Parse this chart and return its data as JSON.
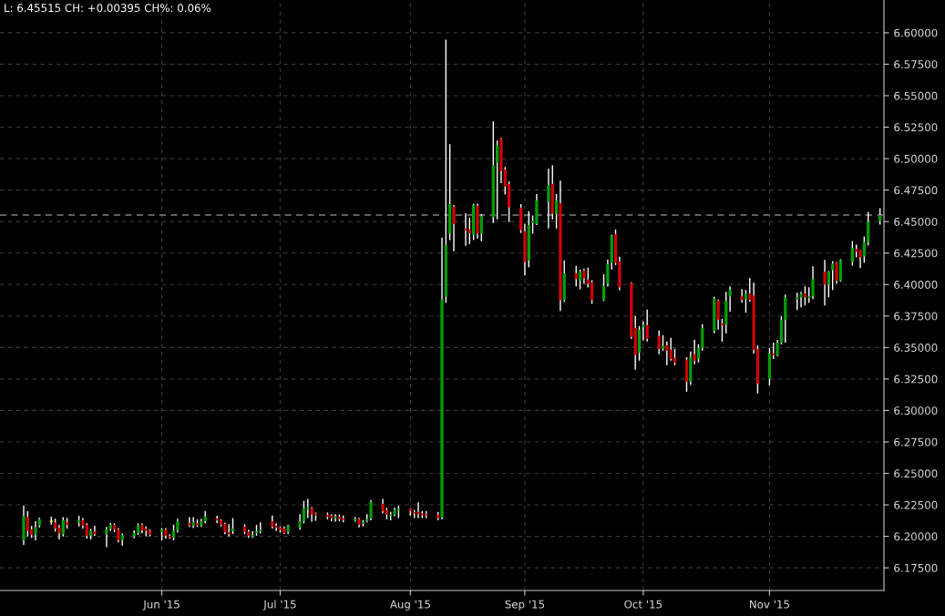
{
  "chart_data": {
    "type": "candlestick",
    "annotations": [
      "L: 6.45515 CH: +0.00395 CH%: 0.06%"
    ],
    "x": [
      "2015-04-27",
      "2015-04-28",
      "2015-04-29",
      "2015-04-30",
      "2015-05-01",
      "2015-05-04",
      "2015-05-05",
      "2015-05-06",
      "2015-05-07",
      "2015-05-08",
      "2015-05-11",
      "2015-05-12",
      "2015-05-13",
      "2015-05-14",
      "2015-05-15",
      "2015-05-18",
      "2015-05-19",
      "2015-05-20",
      "2015-05-21",
      "2015-05-22",
      "2015-05-25",
      "2015-05-26",
      "2015-05-27",
      "2015-05-28",
      "2015-05-29",
      "2015-06-01",
      "2015-06-02",
      "2015-06-03",
      "2015-06-04",
      "2015-06-05",
      "2015-06-08",
      "2015-06-09",
      "2015-06-10",
      "2015-06-11",
      "2015-06-12",
      "2015-06-15",
      "2015-06-16",
      "2015-06-17",
      "2015-06-18",
      "2015-06-19",
      "2015-06-22",
      "2015-06-23",
      "2015-06-24",
      "2015-06-25",
      "2015-06-26",
      "2015-06-29",
      "2015-06-30",
      "2015-07-01",
      "2015-07-02",
      "2015-07-03",
      "2015-07-06",
      "2015-07-07",
      "2015-07-08",
      "2015-07-09",
      "2015-07-10",
      "2015-07-13",
      "2015-07-14",
      "2015-07-15",
      "2015-07-16",
      "2015-07-17",
      "2015-07-20",
      "2015-07-21",
      "2015-07-22",
      "2015-07-23",
      "2015-07-24",
      "2015-07-27",
      "2015-07-28",
      "2015-07-29",
      "2015-07-30",
      "2015-07-31",
      "2015-08-03",
      "2015-08-04",
      "2015-08-05",
      "2015-08-06",
      "2015-08-07",
      "2015-08-10",
      "2015-08-11",
      "2015-08-12",
      "2015-08-13",
      "2015-08-14",
      "2015-08-17",
      "2015-08-18",
      "2015-08-19",
      "2015-08-20",
      "2015-08-21",
      "2015-08-24",
      "2015-08-25",
      "2015-08-26",
      "2015-08-27",
      "2015-08-28",
      "2015-08-31",
      "2015-09-01",
      "2015-09-02",
      "2015-09-03",
      "2015-09-04",
      "2015-09-07",
      "2015-09-08",
      "2015-09-09",
      "2015-09-10",
      "2015-09-11",
      "2015-09-14",
      "2015-09-15",
      "2015-09-16",
      "2015-09-17",
      "2015-09-18",
      "2015-09-21",
      "2015-09-22",
      "2015-09-23",
      "2015-09-24",
      "2015-09-25",
      "2015-09-28",
      "2015-09-29",
      "2015-09-30",
      "2015-10-01",
      "2015-10-02",
      "2015-10-05",
      "2015-10-06",
      "2015-10-07",
      "2015-10-08",
      "2015-10-09",
      "2015-10-12",
      "2015-10-13",
      "2015-10-14",
      "2015-10-15",
      "2015-10-16",
      "2015-10-19",
      "2015-10-20",
      "2015-10-21",
      "2015-10-22",
      "2015-10-23",
      "2015-10-26",
      "2015-10-27",
      "2015-10-28",
      "2015-10-29",
      "2015-10-30",
      "2015-11-02",
      "2015-11-03",
      "2015-11-04",
      "2015-11-05",
      "2015-11-06",
      "2015-11-09",
      "2015-11-10",
      "2015-11-11",
      "2015-11-12",
      "2015-11-13",
      "2015-11-16",
      "2015-11-17",
      "2015-11-18",
      "2015-11-19",
      "2015-11-20",
      "2015-11-23",
      "2015-11-24",
      "2015-11-25",
      "2015-11-26",
      "2015-11-27",
      "2015-11-30"
    ],
    "ohlc": [
      [
        6.1968,
        6.2245,
        6.1931,
        6.2164
      ],
      [
        6.2157,
        6.2201,
        6.2,
        6.2042
      ],
      [
        6.2054,
        6.2083,
        6.1988,
        6.2012
      ],
      [
        6.2012,
        6.212,
        6.1968,
        6.2074
      ],
      [
        6.2086,
        6.2147,
        6.2071,
        6.2135
      ],
      [
        6.2126,
        6.2157,
        6.2093,
        6.2114
      ],
      [
        6.211,
        6.214,
        6.2037,
        6.2061
      ],
      [
        6.2069,
        6.2091,
        6.1976,
        6.2025
      ],
      [
        6.2017,
        6.2152,
        6.1998,
        6.2128
      ],
      [
        6.2113,
        6.2147,
        6.2061,
        6.2091
      ],
      [
        6.2108,
        6.2164,
        6.2078,
        6.2128
      ],
      [
        6.2128,
        6.2147,
        6.2061,
        6.2086
      ],
      [
        6.2091,
        6.2103,
        6.198,
        6.2005
      ],
      [
        6.2005,
        6.2059,
        6.1976,
        6.2044
      ],
      [
        6.2039,
        6.2083,
        6.2005,
        6.2017
      ],
      [
        6.2017,
        6.2074,
        6.1914,
        6.2054
      ],
      [
        6.2061,
        6.2108,
        6.2042,
        6.2091
      ],
      [
        6.2091,
        6.2103,
        6.2034,
        6.2054
      ],
      [
        6.2054,
        6.2066,
        6.1951,
        6.1968
      ],
      [
        6.1968,
        6.2022,
        6.1927,
        6.201
      ],
      [
        6.2,
        6.2047,
        6.1985,
        6.2025
      ],
      [
        6.2025,
        6.2103,
        6.2012,
        6.2091
      ],
      [
        6.2091,
        6.2103,
        6.2025,
        6.2049
      ],
      [
        6.2061,
        6.2078,
        6.2,
        6.2044
      ],
      [
        6.2044,
        6.2054,
        6.2,
        6.2012
      ],
      [
        6.2034,
        6.2066,
        6.1968,
        6.2054
      ],
      [
        6.2054,
        6.2066,
        6.198,
        6.2005
      ],
      [
        6.2003,
        6.2017,
        6.198,
        6.199
      ],
      [
        6.199,
        6.2093,
        6.1968,
        6.2047
      ],
      [
        6.2047,
        6.214,
        6.2029,
        6.212
      ],
      [
        6.2105,
        6.2152,
        6.2074,
        6.2086
      ],
      [
        6.2086,
        6.2152,
        6.2066,
        6.2113
      ],
      [
        6.2105,
        6.2135,
        6.2074,
        6.2086
      ],
      [
        6.2086,
        6.214,
        6.2074,
        6.2118
      ],
      [
        6.212,
        6.2201,
        6.2103,
        6.2157
      ],
      [
        6.2142,
        6.2164,
        6.2103,
        6.2128
      ],
      [
        6.2128,
        6.2135,
        6.2078,
        6.2091
      ],
      [
        6.2098,
        6.211,
        6.2017,
        6.2034
      ],
      [
        6.2032,
        6.2096,
        6.1998,
        6.2018
      ],
      [
        6.2042,
        6.2145,
        6.2018,
        6.2062
      ],
      [
        6.2076,
        6.2096,
        6.2018,
        6.2037
      ],
      [
        6.2037,
        6.2054,
        6.1988,
        6.2005
      ],
      [
        6.1998,
        6.2042,
        6.1988,
        6.201
      ],
      [
        6.2027,
        6.2091,
        6.2005,
        6.2039
      ],
      [
        6.2039,
        6.2111,
        6.2025,
        6.2054
      ],
      [
        6.212,
        6.2165,
        6.2062,
        6.2076
      ],
      [
        6.2084,
        6.2103,
        6.2042,
        6.2069
      ],
      [
        6.2069,
        6.2079,
        6.203,
        6.2052
      ],
      [
        6.2064,
        6.2079,
        6.2018,
        6.2027
      ],
      [
        6.2035,
        6.2091,
        6.2018,
        6.2081
      ],
      [
        6.2071,
        6.2177,
        6.2054,
        6.212
      ],
      [
        6.212,
        6.2282,
        6.2103,
        6.2223
      ],
      [
        6.2218,
        6.2297,
        6.2145,
        6.2231
      ],
      [
        6.2223,
        6.2233,
        6.2116,
        6.2174
      ],
      [
        6.2182,
        6.2189,
        6.2123,
        6.2167
      ],
      [
        6.2172,
        6.2189,
        6.2135,
        6.2155
      ],
      [
        6.2165,
        6.2177,
        6.212,
        6.2145
      ],
      [
        6.2145,
        6.2177,
        6.2116,
        6.2157
      ],
      [
        6.2157,
        6.2172,
        6.212,
        6.2138
      ],
      [
        6.2142,
        6.2165,
        6.2111,
        6.213
      ],
      [
        6.2125,
        6.2152,
        6.2116,
        6.2138
      ],
      [
        6.2138,
        6.2147,
        6.2071,
        6.2093
      ],
      [
        6.2101,
        6.2128,
        6.2079,
        6.2113
      ],
      [
        6.2123,
        6.2177,
        6.2111,
        6.2138
      ],
      [
        6.2142,
        6.2287,
        6.2128,
        6.2275
      ],
      [
        6.2258,
        6.2297,
        6.2184,
        6.2201
      ],
      [
        6.2209,
        6.2226,
        6.2135,
        6.2172
      ],
      [
        6.216,
        6.2194,
        6.2128,
        6.2172
      ],
      [
        6.2172,
        6.2226,
        6.216,
        6.2209
      ],
      [
        6.2206,
        6.2243,
        6.2145,
        6.2218
      ],
      [
        6.2218,
        6.2221,
        6.2165,
        6.2201
      ],
      [
        6.2194,
        6.2209,
        6.2145,
        6.2182
      ],
      [
        6.2194,
        6.227,
        6.2145,
        6.2179
      ],
      [
        6.2182,
        6.2201,
        6.2145,
        6.2167
      ],
      [
        6.2179,
        6.2201,
        6.2145,
        6.2167
      ],
      [
        6.2172,
        6.2194,
        6.2128,
        6.2145
      ],
      [
        6.215,
        6.4372,
        6.2135,
        6.3882
      ],
      [
        6.3904,
        6.5945,
        6.3856,
        6.4315
      ],
      [
        6.4404,
        6.5115,
        6.4353,
        6.4639
      ],
      [
        6.4618,
        6.4632,
        6.4264,
        6.4481
      ],
      [
        6.4445,
        6.4567,
        6.4307,
        6.443
      ],
      [
        6.4437,
        6.4531,
        6.4322,
        6.4409
      ],
      [
        6.4394,
        6.4642,
        6.4353,
        6.4632
      ],
      [
        6.4625,
        6.4642,
        6.4365,
        6.4404
      ],
      [
        6.4404,
        6.456,
        6.4344,
        6.4546
      ],
      [
        6.4534,
        6.5296,
        6.4488,
        6.4949
      ],
      [
        6.4966,
        6.5144,
        6.4517,
        6.5108
      ],
      [
        6.5159,
        6.5166,
        6.4805,
        6.4901
      ],
      [
        6.4913,
        6.4933,
        6.4714,
        6.4779
      ],
      [
        6.4798,
        6.482,
        6.4497,
        6.4613
      ],
      [
        6.4611,
        6.4639,
        6.4409,
        6.4433
      ],
      [
        6.4423,
        6.4481,
        6.4072,
        6.418
      ],
      [
        6.4192,
        6.4582,
        6.4137,
        6.4473
      ],
      [
        6.449,
        6.4548,
        6.4404,
        6.4505
      ],
      [
        6.4481,
        6.4719,
        6.4473,
        6.4668
      ],
      [
        6.4661,
        6.4921,
        6.4445,
        6.4791
      ],
      [
        6.4798,
        6.4949,
        6.4517,
        6.4562
      ],
      [
        6.4562,
        6.4719,
        6.4445,
        6.4668
      ],
      [
        6.4647,
        6.4825,
        6.379,
        6.3877
      ],
      [
        6.3875,
        6.4192,
        6.386,
        6.4089
      ],
      [
        6.409,
        6.4149,
        6.3985,
        6.4043
      ],
      [
        6.4028,
        6.4119,
        6.3962,
        6.4105
      ],
      [
        6.4112,
        6.4127,
        6.4006,
        6.4049
      ],
      [
        6.404,
        6.4134,
        6.3977,
        6.4006
      ],
      [
        6.4018,
        6.4035,
        6.3847,
        6.3876
      ],
      [
        6.3876,
        6.4083,
        6.3868,
        6.3989
      ],
      [
        6.4006,
        6.4199,
        6.3984,
        6.4163
      ],
      [
        6.4172,
        6.4394,
        6.4119,
        6.4387
      ],
      [
        6.4402,
        6.4438,
        6.4155,
        6.4172
      ],
      [
        6.4184,
        6.4221,
        6.3955,
        6.3977
      ],
      [
        6.4011,
        6.4018,
        6.3568,
        6.3584
      ],
      [
        6.3656,
        6.375,
        6.3323,
        6.3439
      ],
      [
        6.346,
        6.367,
        6.3395,
        6.3641
      ],
      [
        6.3663,
        6.3707,
        6.3555,
        6.3678
      ],
      [
        6.3678,
        6.3801,
        6.3547,
        6.3569
      ],
      [
        6.3591,
        6.3634,
        6.3446,
        6.3489
      ],
      [
        6.3489,
        6.3598,
        6.3475,
        6.3518
      ],
      [
        6.3518,
        6.3547,
        6.3359,
        6.3475
      ],
      [
        6.3482,
        6.3576,
        6.3395,
        6.341
      ],
      [
        6.3417,
        6.3489,
        6.3359,
        6.3381
      ],
      [
        6.3403,
        6.3424,
        6.3149,
        6.3229
      ],
      [
        6.3229,
        6.3468,
        6.3202,
        6.3424
      ],
      [
        6.3446,
        6.3562,
        6.3366,
        6.3395
      ],
      [
        6.341,
        6.3526,
        6.3381,
        6.3497
      ],
      [
        6.3497,
        6.3685,
        6.3475,
        6.3656
      ],
      [
        6.3634,
        6.3902,
        6.3612,
        6.3888
      ],
      [
        6.3873,
        6.388,
        6.3641,
        6.3721
      ],
      [
        6.369,
        6.3728,
        6.3546,
        6.3678
      ],
      [
        6.3683,
        6.3942,
        6.3611,
        6.387
      ],
      [
        6.3906,
        6.3986,
        6.3784,
        6.3957
      ],
      [
        6.3906,
        6.3964,
        6.3856,
        6.3877
      ],
      [
        6.3885,
        6.3957,
        6.3776,
        6.3928
      ],
      [
        6.3928,
        6.405,
        6.3863,
        6.3877
      ],
      [
        6.3913,
        6.4014,
        6.3452,
        6.3481
      ],
      [
        6.3488,
        6.3517,
        6.3135,
        6.3214
      ],
      [
        6.325,
        6.3495,
        6.3199,
        6.3452
      ],
      [
        6.3454,
        6.3538,
        6.3409,
        6.344
      ],
      [
        6.3437,
        6.356,
        6.343,
        6.3538
      ],
      [
        6.3538,
        6.3748,
        6.3524,
        6.3719
      ],
      [
        6.3719,
        6.3921,
        6.3538,
        6.3899
      ],
      [
        6.3885,
        6.3935,
        6.3798,
        6.3899
      ],
      [
        6.3899,
        6.3942,
        6.382,
        6.3928
      ],
      [
        6.3928,
        6.3986,
        6.3834,
        6.3899
      ],
      [
        6.3892,
        6.3978,
        6.3856,
        6.3906
      ],
      [
        6.3906,
        6.4144,
        6.3885,
        6.4043
      ],
      [
        6.4101,
        6.4195,
        6.3834,
        6.4
      ],
      [
        6.4,
        6.4108,
        6.3899,
        6.4101
      ],
      [
        6.4115,
        6.4187,
        6.3957,
        6.4166
      ],
      [
        6.4173,
        6.418,
        6.4007,
        6.4029
      ],
      [
        6.4029,
        6.4202,
        6.4022,
        6.4195
      ],
      [
        6.418,
        6.4346,
        6.4151,
        6.4288
      ],
      [
        6.4281,
        6.4317,
        6.4216,
        6.426
      ],
      [
        6.4274,
        6.4274,
        6.413,
        6.4216
      ],
      [
        6.4224,
        6.4382,
        6.4173,
        6.4339
      ],
      [
        6.4339,
        6.4577,
        6.431,
        6.4498
      ],
      [
        6.4505,
        6.4606,
        6.4476,
        6.4552
      ]
    ],
    "colors": [
      "#00a000",
      "#d40000",
      "#d40000",
      "#00a000",
      "#00a000",
      "#ffff00",
      "#d40000",
      "#d40000",
      "#00a000",
      "#d40000",
      "#00a000",
      "#d40000",
      "#d40000",
      "#00a000",
      "#d40000",
      "#00a000",
      "#00a000",
      "#d40000",
      "#d40000",
      "#00a000",
      "#00a000",
      "#00a000",
      "#d40000",
      "#d40000",
      "#d40000",
      "#00a000",
      "#d40000",
      "#d40000",
      "#00a000",
      "#00a000",
      "#d40000",
      "#00a000",
      "#d40000",
      "#00a000",
      "#00a000",
      "#d40000",
      "#d40000",
      "#d40000",
      "#d40000",
      "#00a000",
      "#d40000",
      "#d40000",
      "#00a000",
      "#00a000",
      "#00a000",
      "#d40000",
      "#d40000",
      "#d40000",
      "#d40000",
      "#00a000",
      "#00a000",
      "#00a000",
      "#00a000",
      "#d40000",
      "#d40000",
      "#d40000",
      "#d40000",
      "#00a000",
      "#d40000",
      "#d40000",
      "#00a000",
      "#d40000",
      "#00a000",
      "#00a000",
      "#00a000",
      "#d40000",
      "#d40000",
      "#00a000",
      "#00a000",
      "#00a000",
      "#d40000",
      "#d40000",
      "#d40000",
      "#d40000",
      "#d40000",
      "#d40000",
      "#00a000",
      "#00a000",
      "#00a000",
      "#d40000",
      "#d40000",
      "#d40000",
      "#00a000",
      "#d40000",
      "#00a000",
      "#00a000",
      "#00a000",
      "#d40000",
      "#d40000",
      "#d40000",
      "#d40000",
      "#d40000",
      "#00a000",
      "#00a000",
      "#00a000",
      "#00a000",
      "#d40000",
      "#00a000",
      "#d40000",
      "#00a000",
      "#d40000",
      "#00a000",
      "#d40000",
      "#d40000",
      "#d40000",
      "#00a000",
      "#00a000",
      "#00a000",
      "#d40000",
      "#d40000",
      "#d40000",
      "#d40000",
      "#00a000",
      "#00a000",
      "#d40000",
      "#d40000",
      "#00a000",
      "#d40000",
      "#d40000",
      "#d40000",
      "#d40000",
      "#00a000",
      "#d40000",
      "#00a000",
      "#00a000",
      "#00a000",
      "#d40000",
      "#d40000",
      "#00a000",
      "#00a000",
      "#d40000",
      "#00a000",
      "#d40000",
      "#d40000",
      "#d40000",
      "#00a000",
      "#d40000",
      "#00a000",
      "#00a000",
      "#00a000",
      "#00a000",
      "#00a000",
      "#d40000",
      "#00a000",
      "#00a000",
      "#d40000",
      "#00a000",
      "#00a000",
      "#d40000",
      "#00a000",
      "#00a000",
      "#d40000",
      "#d40000",
      "#00a000",
      "#00a000",
      "#00a000"
    ],
    "xlim": [
      "2015-04-21",
      "2015-12-01"
    ],
    "xticks": [
      {
        "value": "2015-06-01",
        "label": "Jun '15"
      },
      {
        "value": "2015-07-01",
        "label": "Jul '15"
      },
      {
        "value": "2015-08-03",
        "label": "Aug '15"
      },
      {
        "value": "2015-09-01",
        "label": "Sep '15"
      },
      {
        "value": "2015-10-01",
        "label": "Oct '15"
      },
      {
        "value": "2015-11-02",
        "label": "Nov '15"
      }
    ],
    "ylim": [
      6.157,
      6.626
    ],
    "yticks": [
      {
        "value": 6.175,
        "label": "6.17500"
      },
      {
        "value": 6.2,
        "label": "6.20000"
      },
      {
        "value": 6.225,
        "label": "6.22500"
      },
      {
        "value": 6.25,
        "label": "6.25000"
      },
      {
        "value": 6.275,
        "label": "6.27500"
      },
      {
        "value": 6.3,
        "label": "6.30000"
      },
      {
        "value": 6.325,
        "label": "6.32500"
      },
      {
        "value": 6.35,
        "label": "6.35000"
      },
      {
        "value": 6.375,
        "label": "6.37500"
      },
      {
        "value": 6.4,
        "label": "6.40000"
      },
      {
        "value": 6.425,
        "label": "6.42500"
      },
      {
        "value": 6.45,
        "label": "6.45000"
      },
      {
        "value": 6.475,
        "label": "6.47500"
      },
      {
        "value": 6.5,
        "label": "6.50000"
      },
      {
        "value": 6.525,
        "label": "6.52500"
      },
      {
        "value": 6.55,
        "label": "6.55000"
      },
      {
        "value": 6.575,
        "label": "6.57500"
      },
      {
        "value": 6.6,
        "label": "6.60000"
      }
    ],
    "ref_lines": [
      {
        "axis": "y",
        "value": 6.45515,
        "color": "#808080",
        "line_style": "dashed"
      }
    ],
    "grid": true
  }
}
